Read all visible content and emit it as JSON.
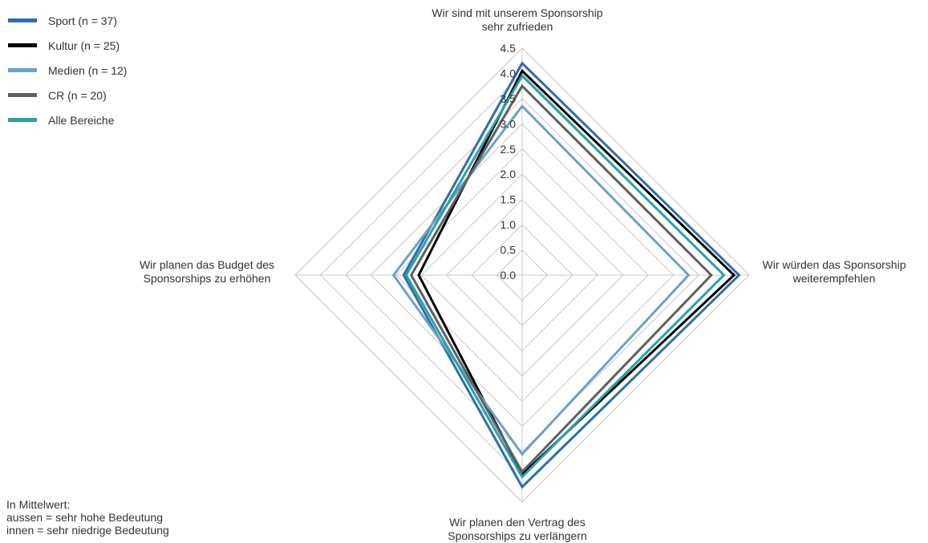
{
  "chart_data": {
    "type": "radar",
    "axes": [
      "Wir sind mit unserem Sponsorship sehr zufrieden",
      "Wir würden das Sponsorship weiterempfehlen",
      "Wir planen den Vertrag des Sponsorships zu verlängern",
      "Wir planen das Budget des Sponsorships zu erhöhen"
    ],
    "axis_label_lines": [
      [
        "Wir sind mit unserem Sponsorship",
        "sehr zufrieden"
      ],
      [
        "Wir würden das Sponsorship",
        "weiterempfehlen"
      ],
      [
        "Wir planen den Vertrag des",
        "Sponsorships zu verlängern"
      ],
      [
        "Wir planen das Budget des",
        "Sponsorships zu erhöhen"
      ]
    ],
    "rlim": [
      0,
      4.5
    ],
    "ticks": [
      "0.0",
      "0.5",
      "1.0",
      "1.5",
      "2.0",
      "2.5",
      "3.0",
      "3.5",
      "4.0",
      "4.5"
    ],
    "grid": true,
    "legend_position": "top-left",
    "series": [
      {
        "name": "Sport (n = 37)",
        "color": "#2e6fa8",
        "values": [
          4.2,
          4.3,
          4.2,
          2.35
        ]
      },
      {
        "name": "Kultur (n = 25)",
        "color": "#000000",
        "values": [
          4.05,
          4.2,
          3.95,
          2.05
        ]
      },
      {
        "name": "Medien (n = 12)",
        "color": "#6aa2cb",
        "values": [
          3.35,
          3.3,
          3.55,
          2.55
        ]
      },
      {
        "name": "CR (n = 20)",
        "color": "#606060",
        "values": [
          3.75,
          3.75,
          3.9,
          2.2
        ]
      },
      {
        "name": "Alle Bereiche",
        "color": "#2aa1a8",
        "values": [
          3.95,
          4.0,
          4.0,
          2.3
        ]
      }
    ]
  },
  "note": {
    "line1": "In Mittelwert:",
    "line2": "aussen = sehr hohe Bedeutung",
    "line3": "innen = sehr niedrige Bedeutung"
  }
}
